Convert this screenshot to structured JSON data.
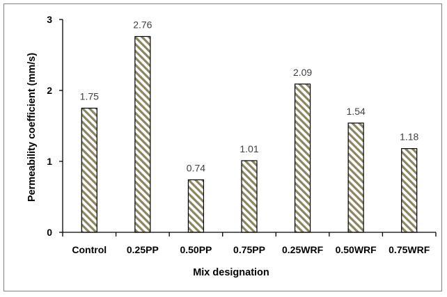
{
  "chart_data": {
    "type": "bar",
    "categories": [
      "Control",
      "0.25PP",
      "0.50PP",
      "0.75PP",
      "0.25WRF",
      "0.50WRF",
      "0.75WRF"
    ],
    "values": [
      1.75,
      2.76,
      0.74,
      1.01,
      2.09,
      1.54,
      1.18
    ],
    "data_labels": [
      "1.75",
      "2.76",
      "0.74",
      "1.01",
      "2.09",
      "1.54",
      "1.18"
    ],
    "xlabel": "Mix designation",
    "ylabel": "Permeability coefficient (mm/s)",
    "ylim": [
      0,
      3
    ],
    "yticks": [
      "0",
      "1",
      "2",
      "3"
    ],
    "grid": false,
    "legend": "none",
    "bar_fill": "diagonal-hatch",
    "hatch_color": "#8a8560",
    "bar_outline_color": "#000000"
  }
}
